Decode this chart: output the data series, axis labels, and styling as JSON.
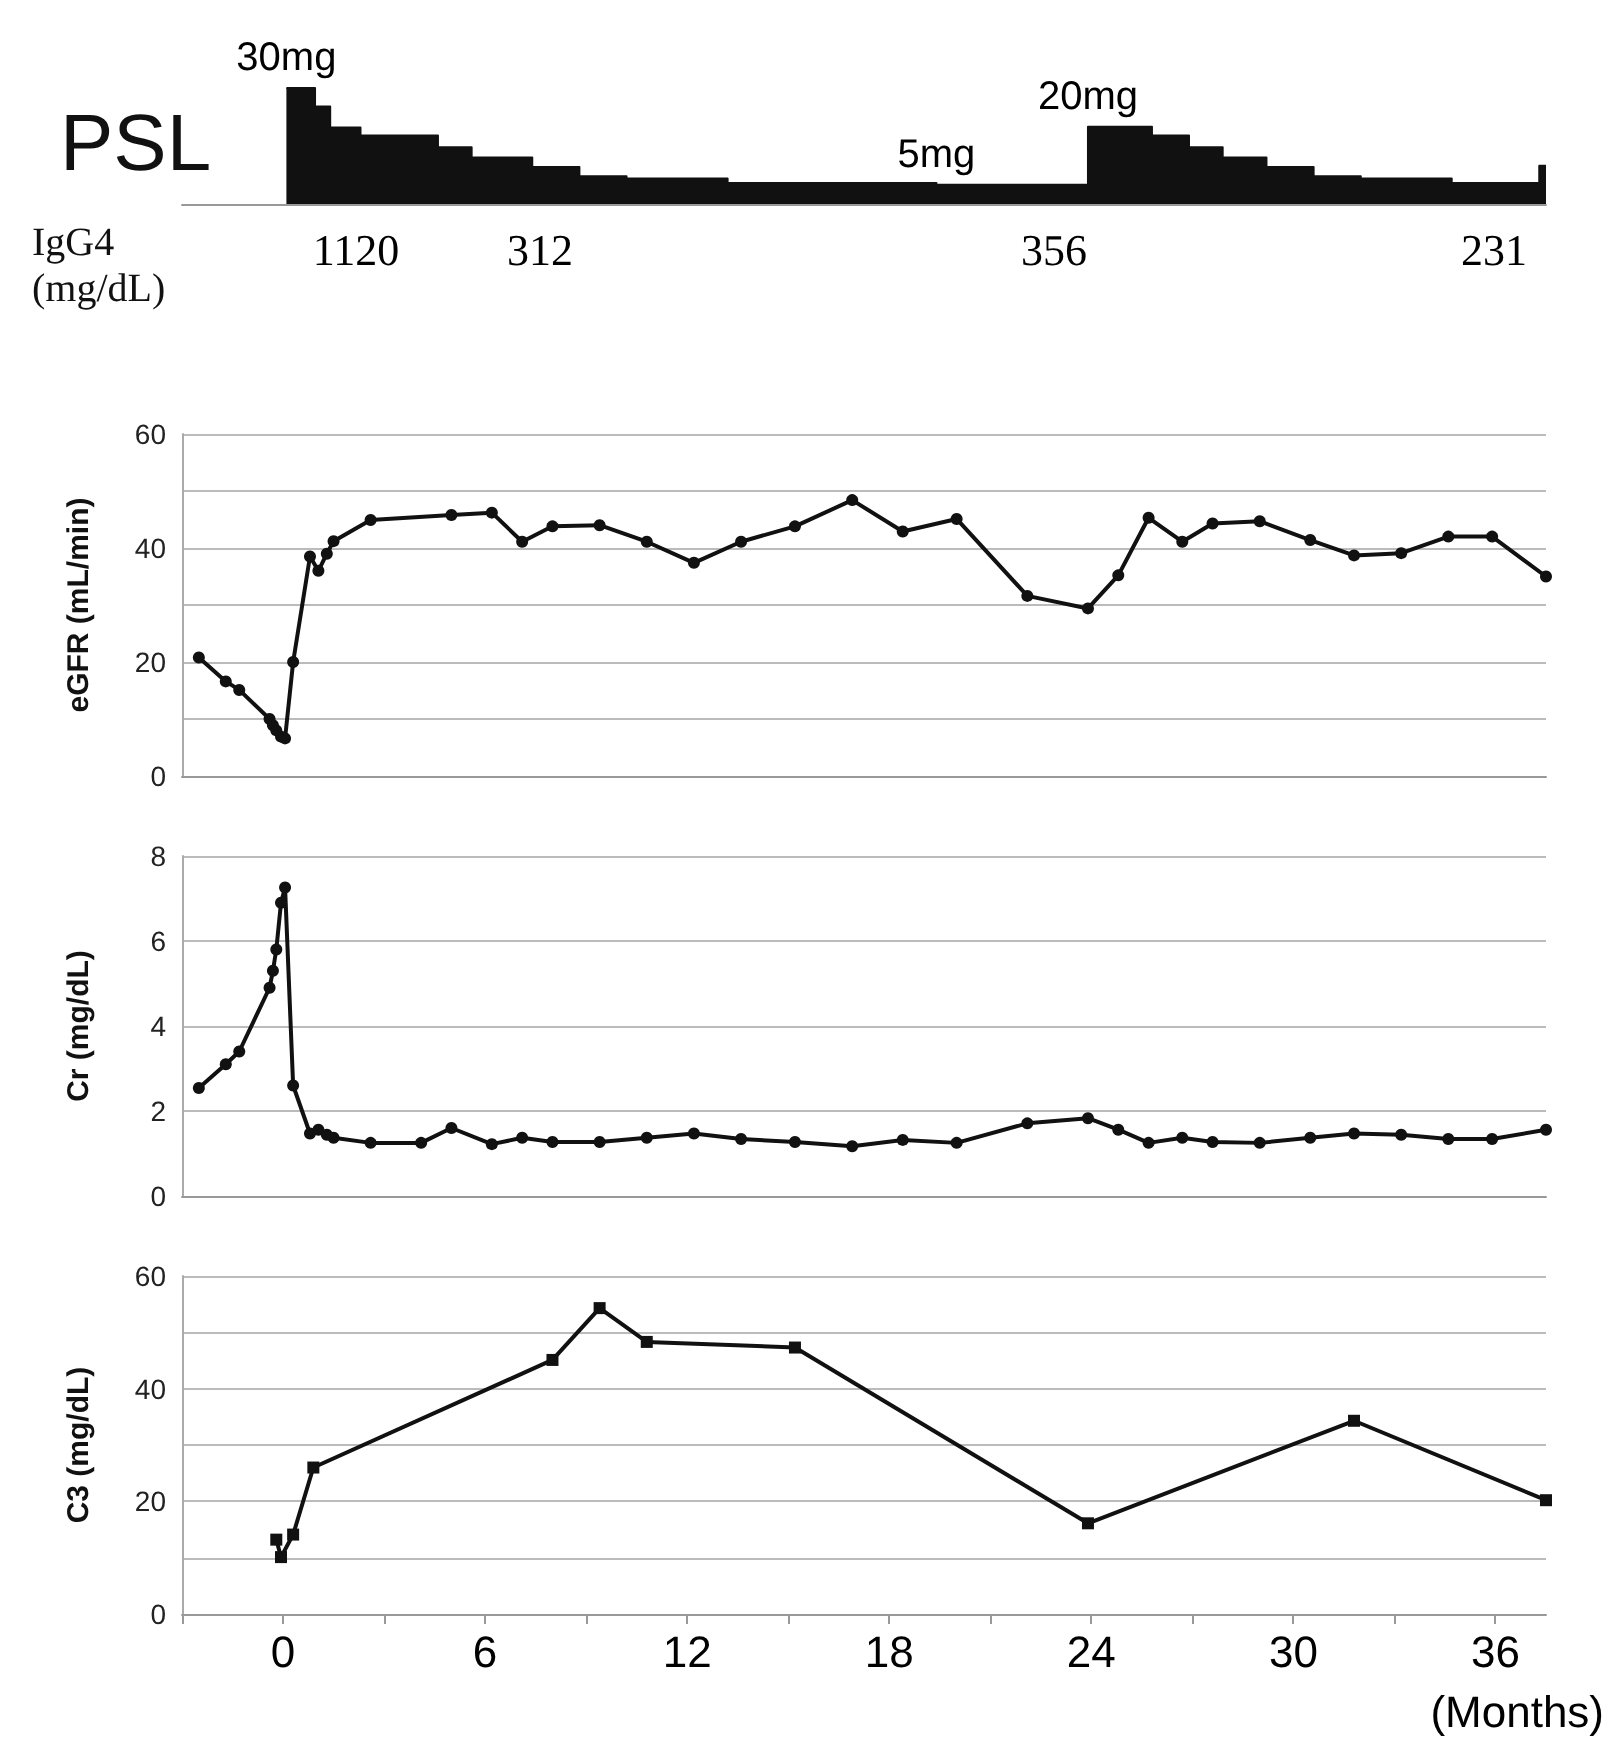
{
  "chart_data": [
    {
      "type": "area",
      "ylabel": "PSL",
      "color": "#111111",
      "tick_labels": false,
      "xlim": [
        -3,
        37.5
      ],
      "x": [
        0.1,
        0.95,
        0.95,
        1.4,
        1.4,
        2.3,
        2.3,
        4.6,
        4.6,
        5.6,
        5.6,
        7.4,
        7.4,
        8.8,
        8.8,
        10.2,
        10.2,
        13.2,
        13.2,
        19.4,
        19.4,
        23.9,
        23.9,
        25.8,
        25.8,
        26.9,
        26.9,
        27.9,
        27.9,
        29.2,
        29.2,
        30.6,
        30.6,
        32,
        32,
        34.7,
        34.7,
        37.3,
        37.3,
        37.5
      ],
      "values": [
        30,
        30,
        25.2,
        25.2,
        19.8,
        19.8,
        17.7,
        17.7,
        14.7,
        14.7,
        12,
        12,
        9.6,
        9.6,
        7.2,
        7.2,
        6.6,
        6.6,
        5.4,
        5.4,
        5,
        5,
        20,
        20,
        17.7,
        17.7,
        14.7,
        14.7,
        12,
        12,
        9.6,
        9.6,
        7.2,
        7.2,
        6.6,
        6.6,
        5.4,
        5.4,
        9.9,
        9.9
      ],
      "value_labels": [
        "30mg",
        null,
        null,
        null,
        null,
        null,
        null,
        null,
        null,
        null,
        null,
        null,
        null,
        null,
        null,
        null,
        null,
        null,
        null,
        null,
        "5mg",
        null,
        "20mg",
        null,
        null,
        null,
        null,
        null,
        null,
        null,
        null,
        null,
        null,
        null,
        null,
        null,
        null,
        null,
        null,
        null
      ]
    },
    {
      "type": "other",
      "ylabel": "IgG4\n(mg/dL)",
      "annotations": [
        "1120",
        "312",
        "356",
        "231"
      ]
    },
    {
      "type": "line",
      "ylabel": "eGFR (mL/min)",
      "xlim": [
        -3,
        37.5
      ],
      "ylim": [
        0,
        60
      ],
      "yticks": [
        0,
        20,
        40,
        60
      ],
      "grid": "y",
      "tick_labels": "y",
      "marker": "circle",
      "color": "#111111",
      "x": [
        -2.5,
        -1.7,
        -1.3,
        -0.4,
        -0.3,
        -0.2,
        -0.06,
        0.06,
        0.3,
        0.8,
        1.05,
        1.3,
        1.5,
        2.6,
        5.0,
        6.2,
        7.1,
        8.0,
        9.4,
        10.8,
        12.2,
        13.6,
        15.2,
        16.9,
        18.4,
        20.0,
        22.1,
        23.9,
        24.8,
        25.7,
        26.7,
        27.6,
        29.0,
        30.5,
        31.8,
        33.2,
        34.6,
        35.9,
        37.5
      ],
      "values": [
        20.8,
        16.6,
        15.1,
        10,
        8.9,
        8,
        6.9,
        6.6,
        20,
        38.5,
        36,
        39,
        41.2,
        44.9,
        45.8,
        46.2,
        41.1,
        43.8,
        44,
        41.1,
        37.4,
        41.1,
        43.8,
        48.4,
        42.9,
        45.1,
        31.6,
        29.4,
        35.2,
        45.3,
        41.1,
        44.3,
        44.7,
        41.4,
        38.7,
        39.1,
        42,
        42,
        35
      ]
    },
    {
      "type": "line",
      "ylabel": "Cr (mg/dL)",
      "xlim": [
        -3,
        37.5
      ],
      "ylim": [
        0,
        8
      ],
      "yticks": [
        0,
        2,
        4,
        6,
        8
      ],
      "grid": "y",
      "tick_labels": "y",
      "marker": "circle",
      "color": "#111111",
      "x": [
        -2.5,
        -1.7,
        -1.3,
        -0.4,
        -0.3,
        -0.2,
        -0.06,
        0.06,
        0.3,
        0.8,
        1.05,
        1.3,
        1.5,
        2.6,
        4.1,
        5.0,
        6.2,
        7.1,
        8.0,
        9.4,
        10.8,
        12.2,
        13.6,
        15.2,
        16.9,
        18.4,
        20.0,
        22.1,
        23.9,
        24.8,
        25.7,
        26.7,
        27.6,
        29.0,
        30.5,
        31.8,
        33.2,
        34.6,
        35.9,
        37.5
      ],
      "values": [
        2.54,
        3.1,
        3.4,
        4.9,
        5.3,
        5.8,
        6.9,
        7.26,
        2.6,
        1.47,
        1.56,
        1.44,
        1.37,
        1.25,
        1.25,
        1.6,
        1.22,
        1.37,
        1.27,
        1.27,
        1.37,
        1.47,
        1.34,
        1.27,
        1.17,
        1.32,
        1.25,
        1.71,
        1.83,
        1.56,
        1.25,
        1.37,
        1.27,
        1.25,
        1.37,
        1.47,
        1.44,
        1.34,
        1.34,
        1.56
      ]
    },
    {
      "type": "line",
      "ylabel": "C3 (mg/dL)",
      "xlabel": "(Months)",
      "xlim": [
        -3,
        37.5
      ],
      "ylim": [
        0,
        60
      ],
      "yticks": [
        0,
        20,
        40,
        60
      ],
      "grid": "y",
      "marker": "square",
      "color": "#111111",
      "xticks": [
        {
          "value": -3,
          "label": null
        },
        0,
        {
          "value": 3,
          "label": null
        },
        6,
        {
          "value": 9,
          "label": null
        },
        12,
        {
          "value": 15,
          "label": null
        },
        18,
        {
          "value": 21,
          "label": null
        },
        24,
        {
          "value": 27,
          "label": null
        },
        30,
        {
          "value": 33,
          "label": null
        },
        36
      ],
      "x": [
        -0.2,
        -0.06,
        0.3,
        0.9,
        8.0,
        9.4,
        10.8,
        15.2,
        23.9,
        31.8,
        37.5
      ],
      "values": [
        13.2,
        10.1,
        14.1,
        26,
        45.1,
        54.3,
        48.3,
        47.3,
        16.1,
        34.3,
        20.2
      ]
    }
  ]
}
